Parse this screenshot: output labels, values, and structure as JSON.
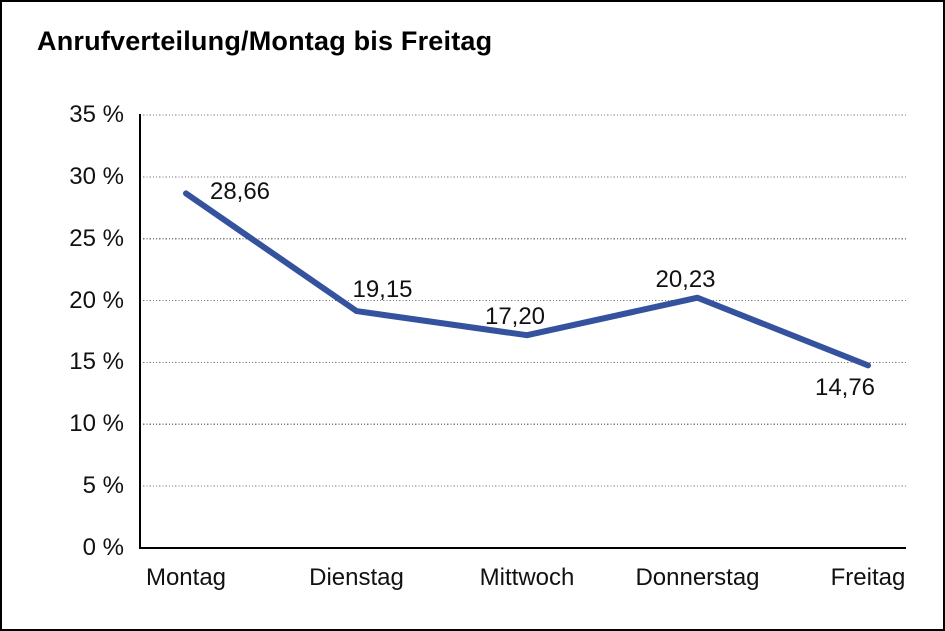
{
  "page": {
    "background": "#ffffff",
    "frame_border_color": "#000000"
  },
  "chart_data": {
    "type": "line",
    "title": "Anrufverteilung/Montag bis Freitag",
    "categories": [
      "Montag",
      "Dienstag",
      "Mittwoch",
      "Donnerstag",
      "Freitag"
    ],
    "series": [
      {
        "name": "Anrufverteilung",
        "values": [
          28.66,
          19.15,
          17.2,
          20.23,
          14.76
        ]
      }
    ],
    "data_label_texts": [
      "28,66",
      "19,15",
      "17,20",
      "20,23",
      "14,76"
    ],
    "xlabel": "",
    "ylabel": "",
    "ylim": [
      0,
      35
    ],
    "y_axis": {
      "min": 0,
      "max": 35,
      "step": 5,
      "tick_labels": [
        "0 %",
        "5 %",
        "10 %",
        "15 %",
        "20 %",
        "25 %",
        "30 %",
        "35 %"
      ]
    },
    "grid": "horizontal-dotted",
    "legend_position": "none",
    "colors": {
      "line": "#34529E",
      "text": "#111111",
      "grid": "#7a7a7a",
      "axis": "#000000"
    }
  }
}
